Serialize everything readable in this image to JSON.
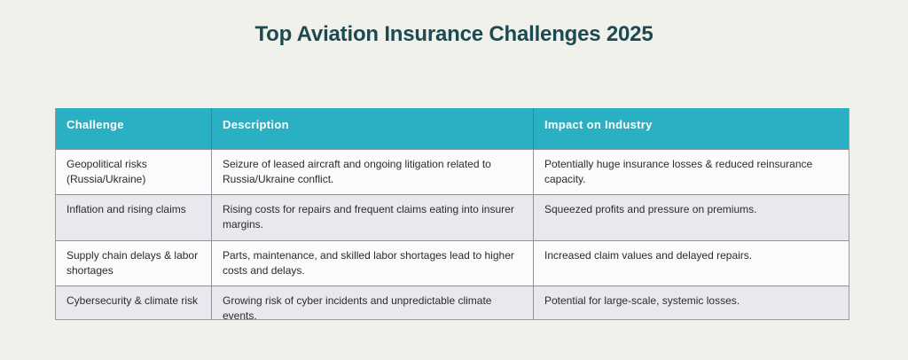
{
  "page": {
    "title": "Top Aviation Insurance Challenges 2025"
  },
  "colors": {
    "background": "#f1f1ec",
    "title_text": "#1b4a52",
    "header_teal": "#29b1c3",
    "header_text": "#ffffff",
    "row_odd": "#fbfbfb",
    "row_even": "#e8e8ee",
    "border": "#90909a",
    "cell_text": "#2b2b30"
  },
  "table": {
    "headers": [
      "Challenge",
      "Description",
      "Impact on Industry"
    ],
    "rows": [
      {
        "challenge": "Geopolitical risks (Russia/Ukraine)",
        "description": "Seizure of leased aircraft and ongoing litigation related to Russia/Ukraine conflict.",
        "impact": "Potentially huge insurance losses & reduced reinsurance capacity."
      },
      {
        "challenge": "Inflation and rising claims",
        "description": "Rising costs for repairs and frequent claims eating into insurer margins.",
        "impact": "Squeezed profits and pressure on premiums."
      },
      {
        "challenge": "Supply chain delays & labor shortages",
        "description": "Parts, maintenance, and skilled labor shortages lead to higher costs and delays.",
        "impact": "Increased claim values and delayed repairs."
      },
      {
        "challenge": "Cybersecurity & climate risk",
        "description": "Growing risk of cyber incidents and unpredictable climate events.",
        "impact": "Potential for large-scale, systemic losses."
      }
    ]
  }
}
